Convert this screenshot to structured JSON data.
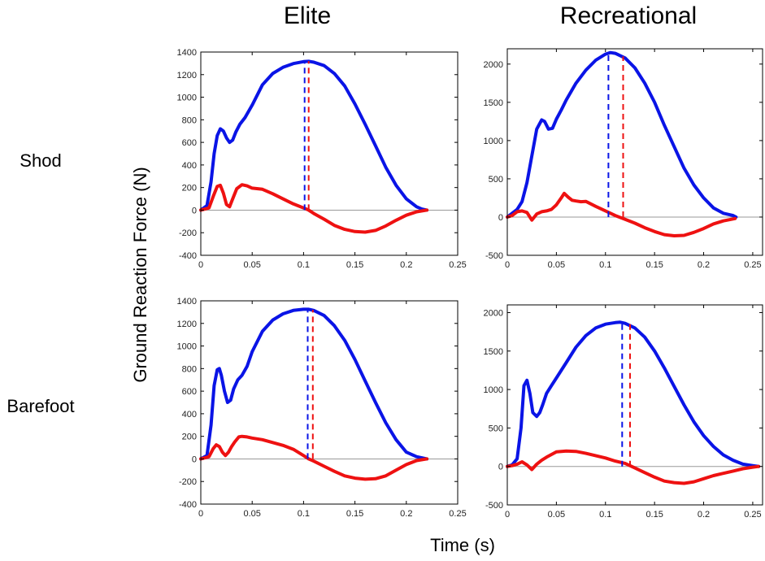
{
  "figure": {
    "columns": [
      "Elite",
      "Recreational"
    ],
    "rows": [
      "Shod",
      "Barefoot"
    ],
    "ylabel": "Ground Reaction Force (N)",
    "xlabel": "Time (s)",
    "colors": {
      "vertical": "#0a14e6",
      "horizontal": "#ee1111",
      "zero_line": "#9a9a9a",
      "axes": "#000000"
    }
  },
  "chart_data": [
    {
      "type": "line",
      "name": "elite-shod",
      "column": "Elite",
      "row": "Shod",
      "xlim": [
        0,
        0.25
      ],
      "ylim": [
        -400,
        1400
      ],
      "xticks": [
        0,
        0.05,
        0.1,
        0.15,
        0.2,
        0.25
      ],
      "yticks": [
        -400,
        -200,
        0,
        200,
        400,
        600,
        800,
        1000,
        1200,
        1400
      ],
      "series": [
        {
          "name": "vertical",
          "color": "#0a14e6",
          "x": [
            0,
            0.006,
            0.01,
            0.013,
            0.016,
            0.019,
            0.022,
            0.025,
            0.028,
            0.031,
            0.034,
            0.038,
            0.043,
            0.05,
            0.06,
            0.07,
            0.08,
            0.09,
            0.1,
            0.105,
            0.11,
            0.12,
            0.13,
            0.14,
            0.15,
            0.16,
            0.17,
            0.18,
            0.19,
            0.2,
            0.21,
            0.215,
            0.22
          ],
          "y": [
            0,
            40,
            250,
            500,
            660,
            720,
            700,
            640,
            600,
            620,
            690,
            760,
            820,
            930,
            1110,
            1210,
            1265,
            1298,
            1315,
            1318,
            1310,
            1280,
            1210,
            1100,
            940,
            760,
            570,
            380,
            220,
            100,
            30,
            10,
            0
          ]
        },
        {
          "name": "horizontal",
          "color": "#ee1111",
          "x": [
            0,
            0.008,
            0.012,
            0.016,
            0.019,
            0.022,
            0.025,
            0.028,
            0.031,
            0.035,
            0.04,
            0.045,
            0.05,
            0.06,
            0.07,
            0.08,
            0.09,
            0.1,
            0.105,
            0.11,
            0.12,
            0.13,
            0.14,
            0.15,
            0.16,
            0.17,
            0.18,
            0.19,
            0.2,
            0.21,
            0.22
          ],
          "y": [
            0,
            20,
            120,
            210,
            220,
            150,
            50,
            30,
            100,
            190,
            225,
            215,
            195,
            185,
            145,
            100,
            55,
            20,
            0,
            -30,
            -80,
            -135,
            -170,
            -190,
            -195,
            -180,
            -140,
            -90,
            -45,
            -15,
            0
          ]
        },
        {
          "name": "vertical-peak-marker",
          "color": "#0a14e6",
          "style": "dashed",
          "x": [
            0.101,
            0.101
          ],
          "y": [
            0,
            1320
          ]
        },
        {
          "name": "horizontal-zero-marker",
          "color": "#ee1111",
          "style": "dashed",
          "x": [
            0.105,
            0.105
          ],
          "y": [
            0,
            1320
          ]
        }
      ]
    },
    {
      "type": "line",
      "name": "recreational-shod",
      "column": "Recreational",
      "row": "Shod",
      "xlim": [
        0,
        0.26
      ],
      "ylim": [
        -500,
        2200
      ],
      "xticks": [
        0,
        0.05,
        0.1,
        0.15,
        0.2,
        0.25
      ],
      "yticks": [
        -500,
        0,
        500,
        1000,
        1500,
        2000
      ],
      "series": [
        {
          "name": "vertical",
          "color": "#0a14e6",
          "x": [
            0,
            0.005,
            0.01,
            0.015,
            0.02,
            0.025,
            0.03,
            0.035,
            0.038,
            0.042,
            0.046,
            0.05,
            0.055,
            0.06,
            0.07,
            0.08,
            0.09,
            0.1,
            0.105,
            0.11,
            0.12,
            0.13,
            0.14,
            0.15,
            0.16,
            0.17,
            0.18,
            0.19,
            0.2,
            0.21,
            0.22,
            0.23,
            0.233
          ],
          "y": [
            0,
            50,
            100,
            200,
            450,
            800,
            1150,
            1270,
            1250,
            1150,
            1160,
            1280,
            1400,
            1530,
            1750,
            1920,
            2050,
            2130,
            2150,
            2140,
            2080,
            1950,
            1750,
            1500,
            1200,
            920,
            640,
            420,
            250,
            120,
            50,
            20,
            0
          ]
        },
        {
          "name": "horizontal",
          "color": "#ee1111",
          "x": [
            0,
            0.005,
            0.01,
            0.015,
            0.02,
            0.025,
            0.03,
            0.035,
            0.04,
            0.045,
            0.05,
            0.055,
            0.058,
            0.062,
            0.066,
            0.07,
            0.075,
            0.08,
            0.09,
            0.1,
            0.11,
            0.12,
            0.13,
            0.14,
            0.15,
            0.16,
            0.17,
            0.18,
            0.19,
            0.2,
            0.21,
            0.22,
            0.232
          ],
          "y": [
            0,
            20,
            70,
            80,
            60,
            -40,
            40,
            70,
            80,
            100,
            160,
            250,
            310,
            260,
            220,
            210,
            200,
            205,
            140,
            80,
            20,
            -30,
            -80,
            -140,
            -190,
            -230,
            -245,
            -240,
            -200,
            -150,
            -90,
            -50,
            -20
          ]
        },
        {
          "name": "vertical-peak-marker",
          "color": "#0a14e6",
          "style": "dashed",
          "x": [
            0.103,
            0.103
          ],
          "y": [
            0,
            2150
          ]
        },
        {
          "name": "horizontal-zero-marker",
          "color": "#ee1111",
          "style": "dashed",
          "x": [
            0.118,
            0.118
          ],
          "y": [
            0,
            2100
          ]
        }
      ]
    },
    {
      "type": "line",
      "name": "elite-barefoot",
      "column": "Elite",
      "row": "Barefoot",
      "xlim": [
        0,
        0.25
      ],
      "ylim": [
        -400,
        1400
      ],
      "xticks": [
        0,
        0.05,
        0.1,
        0.15,
        0.2,
        0.25
      ],
      "yticks": [
        -400,
        -200,
        0,
        200,
        400,
        600,
        800,
        1000,
        1200,
        1400
      ],
      "series": [
        {
          "name": "vertical",
          "color": "#0a14e6",
          "x": [
            0,
            0.006,
            0.01,
            0.013,
            0.016,
            0.018,
            0.02,
            0.023,
            0.026,
            0.029,
            0.032,
            0.036,
            0.04,
            0.045,
            0.05,
            0.06,
            0.07,
            0.08,
            0.09,
            0.1,
            0.105,
            0.11,
            0.12,
            0.13,
            0.14,
            0.15,
            0.16,
            0.17,
            0.18,
            0.19,
            0.2,
            0.21,
            0.22
          ],
          "y": [
            0,
            30,
            300,
            650,
            790,
            800,
            740,
            600,
            500,
            520,
            620,
            700,
            740,
            820,
            950,
            1130,
            1230,
            1285,
            1315,
            1325,
            1325,
            1315,
            1270,
            1180,
            1050,
            880,
            690,
            500,
            320,
            170,
            60,
            20,
            0
          ]
        },
        {
          "name": "horizontal",
          "color": "#ee1111",
          "x": [
            0,
            0.008,
            0.012,
            0.015,
            0.018,
            0.021,
            0.024,
            0.027,
            0.03,
            0.033,
            0.037,
            0.04,
            0.045,
            0.05,
            0.06,
            0.07,
            0.08,
            0.09,
            0.1,
            0.105,
            0.11,
            0.12,
            0.13,
            0.14,
            0.15,
            0.16,
            0.17,
            0.18,
            0.19,
            0.2,
            0.21,
            0.22
          ],
          "y": [
            0,
            20,
            90,
            125,
            110,
            60,
            30,
            60,
            110,
            150,
            195,
            200,
            195,
            185,
            170,
            145,
            120,
            85,
            30,
            0,
            -20,
            -65,
            -110,
            -150,
            -170,
            -180,
            -175,
            -150,
            -100,
            -50,
            -15,
            0
          ]
        },
        {
          "name": "vertical-peak-marker",
          "color": "#0a14e6",
          "style": "dashed",
          "x": [
            0.104,
            0.104
          ],
          "y": [
            0,
            1325
          ]
        },
        {
          "name": "horizontal-zero-marker",
          "color": "#ee1111",
          "style": "dashed",
          "x": [
            0.109,
            0.109
          ],
          "y": [
            0,
            1320
          ]
        }
      ]
    },
    {
      "type": "line",
      "name": "recreational-barefoot",
      "column": "Recreational",
      "row": "Barefoot",
      "xlim": [
        0,
        0.26
      ],
      "ylim": [
        -500,
        2100
      ],
      "xticks": [
        0,
        0.05,
        0.1,
        0.15,
        0.2,
        0.25
      ],
      "yticks": [
        -500,
        0,
        500,
        1000,
        1500,
        2000
      ],
      "series": [
        {
          "name": "vertical",
          "color": "#0a14e6",
          "x": [
            0,
            0.005,
            0.01,
            0.014,
            0.017,
            0.02,
            0.023,
            0.026,
            0.03,
            0.033,
            0.036,
            0.04,
            0.045,
            0.05,
            0.06,
            0.07,
            0.08,
            0.09,
            0.1,
            0.11,
            0.115,
            0.12,
            0.13,
            0.14,
            0.15,
            0.16,
            0.17,
            0.18,
            0.19,
            0.2,
            0.21,
            0.22,
            0.23,
            0.24,
            0.25,
            0.256
          ],
          "y": [
            0,
            20,
            100,
            500,
            1050,
            1120,
            950,
            700,
            650,
            700,
            800,
            950,
            1050,
            1150,
            1350,
            1550,
            1700,
            1800,
            1850,
            1870,
            1875,
            1860,
            1800,
            1680,
            1500,
            1280,
            1040,
            800,
            580,
            400,
            260,
            150,
            80,
            30,
            10,
            0
          ]
        },
        {
          "name": "horizontal",
          "color": "#ee1111",
          "x": [
            0,
            0.005,
            0.01,
            0.015,
            0.02,
            0.025,
            0.03,
            0.035,
            0.04,
            0.05,
            0.06,
            0.07,
            0.08,
            0.09,
            0.1,
            0.11,
            0.12,
            0.13,
            0.14,
            0.15,
            0.16,
            0.17,
            0.18,
            0.19,
            0.2,
            0.21,
            0.22,
            0.23,
            0.24,
            0.25,
            0.256
          ],
          "y": [
            0,
            10,
            30,
            60,
            20,
            -40,
            30,
            80,
            120,
            190,
            200,
            195,
            170,
            140,
            110,
            70,
            40,
            -20,
            -80,
            -140,
            -190,
            -210,
            -220,
            -200,
            -160,
            -120,
            -90,
            -60,
            -30,
            -10,
            0
          ]
        },
        {
          "name": "vertical-peak-marker",
          "color": "#0a14e6",
          "style": "dashed",
          "x": [
            0.117,
            0.117
          ],
          "y": [
            0,
            1875
          ]
        },
        {
          "name": "horizontal-zero-marker",
          "color": "#ee1111",
          "style": "dashed",
          "x": [
            0.125,
            0.125
          ],
          "y": [
            0,
            1850
          ]
        }
      ]
    }
  ]
}
